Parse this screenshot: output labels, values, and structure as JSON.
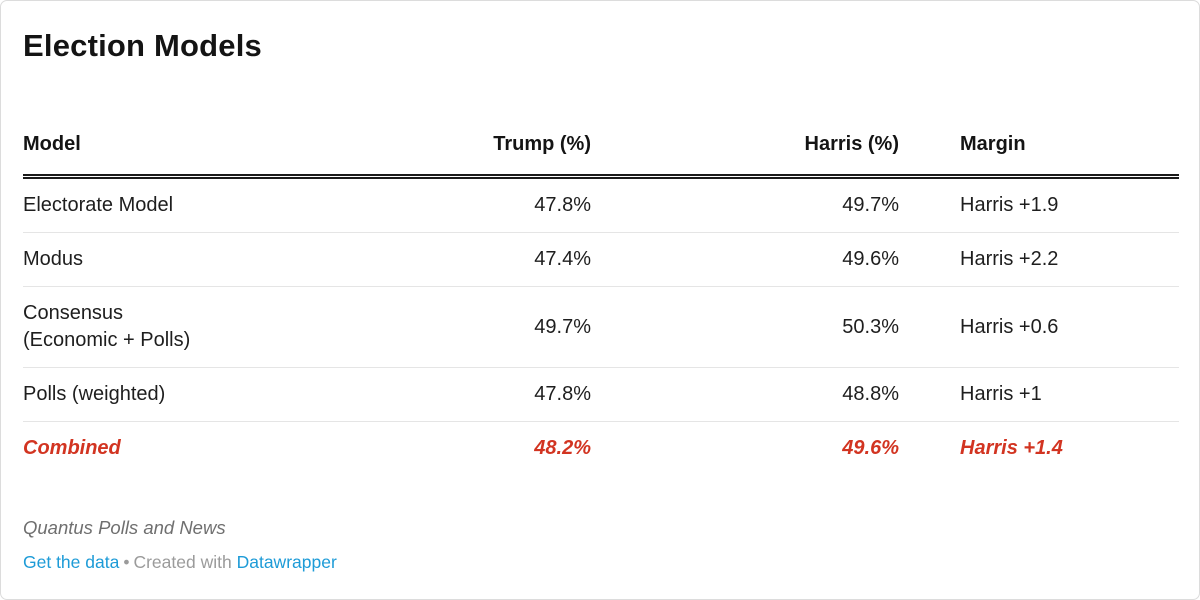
{
  "chart_data": {
    "type": "table",
    "title": "Election Models",
    "columns": [
      "Model",
      "Trump (%)",
      "Harris (%)",
      "Margin"
    ],
    "rows": [
      {
        "model": "Electorate Model",
        "trump": "47.8%",
        "harris": "49.7%",
        "margin": "Harris +1.9"
      },
      {
        "model": "Modus",
        "trump": "47.4%",
        "harris": "49.6%",
        "margin": "Harris +2.2"
      },
      {
        "model": "Consensus\n(Economic + Polls)",
        "trump": "49.7%",
        "harris": "50.3%",
        "margin": "Harris +0.6"
      },
      {
        "model": "Polls (weighted)",
        "trump": "47.8%",
        "harris": "48.8%",
        "margin": "Harris +1"
      },
      {
        "model": "Combined",
        "trump": "48.2%",
        "harris": "49.6%",
        "margin": "Harris +1.4"
      }
    ],
    "values": {
      "trump_pct": [
        47.8,
        47.4,
        49.7,
        47.8,
        48.2
      ],
      "harris_pct": [
        49.7,
        49.6,
        50.3,
        48.8,
        49.6
      ],
      "harris_margin": [
        1.9,
        2.2,
        0.6,
        1.0,
        1.4
      ]
    },
    "highlight_row": "Combined",
    "layout_hints": {
      "numeric_columns_align": "right",
      "header_rule": "double",
      "row_rule": "light-gray"
    }
  },
  "footer": {
    "byline": "Quantus Polls and News",
    "get_data_label": "Get the data",
    "separator": "•",
    "created_with_label": "Created with",
    "datawrapper_label": "Datawrapper"
  },
  "colors": {
    "highlight_red": "#d23421",
    "link_blue": "#1d9bd7",
    "byline_gray": "#6f6f6f",
    "attribution_gray": "#9b9b9b",
    "text_black": "#1a1a1a",
    "row_separator": "#e5e5e5",
    "card_border": "#dcdcdc"
  }
}
